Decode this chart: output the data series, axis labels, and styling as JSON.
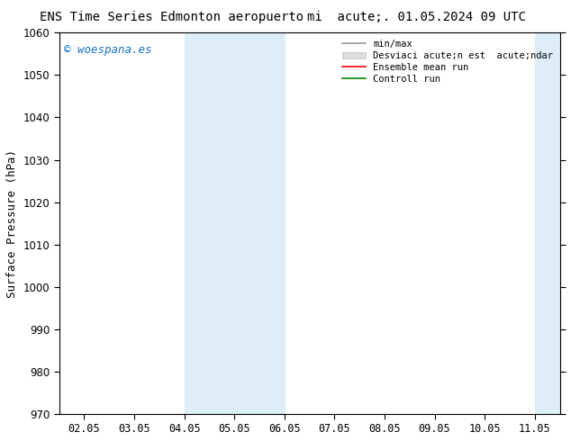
{
  "title_left": "ENS Time Series Edmonton aeropuerto",
  "title_right": "mi  acute;. 01.05.2024 09 UTC",
  "ylabel": "Surface Pressure (hPa)",
  "ylim": [
    970,
    1060
  ],
  "yticks": [
    970,
    980,
    990,
    1000,
    1010,
    1020,
    1030,
    1040,
    1050,
    1060
  ],
  "x_labels": [
    "02.05",
    "03.05",
    "04.05",
    "05.05",
    "06.05",
    "07.05",
    "08.05",
    "09.05",
    "10.05",
    "11.05"
  ],
  "x_values": [
    0,
    1,
    2,
    3,
    4,
    5,
    6,
    7,
    8,
    9
  ],
  "shaded_bands": [
    {
      "xmin": 2.0,
      "xmax": 4.0,
      "color": "#ddeef8"
    },
    {
      "xmin": 9.0,
      "xmax": 10.5,
      "color": "#ddeef8"
    }
  ],
  "watermark": "© woespana.es",
  "watermark_color": "#1a6fc4",
  "legend_items": [
    {
      "label": "min/max",
      "type": "line",
      "color": "#999999"
    },
    {
      "label": "Desviaci acute;n est  acute;ndar",
      "type": "patch",
      "color": "#dddddd"
    },
    {
      "label": "Ensemble mean run",
      "type": "line",
      "color": "#ff0000"
    },
    {
      "label": "Controll run",
      "type": "line",
      "color": "#008800"
    }
  ],
  "background_color": "#ffffff",
  "plot_bg_color": "#ffffff",
  "title_fontsize": 10,
  "tick_fontsize": 8.5,
  "ylabel_fontsize": 9
}
